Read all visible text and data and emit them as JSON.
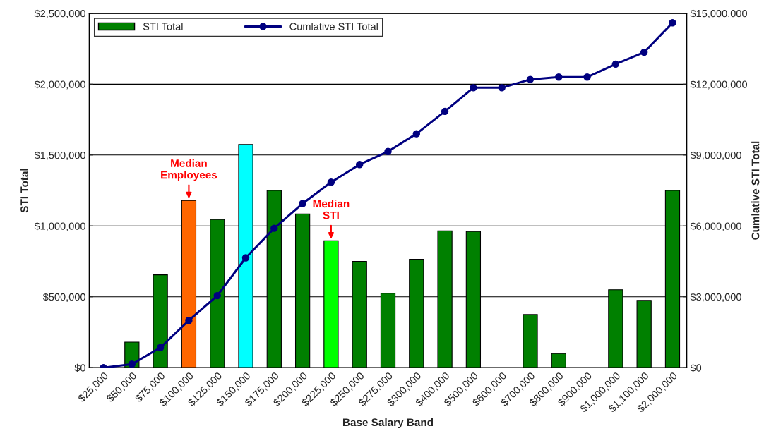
{
  "chart_data": {
    "type": "bar",
    "xlabel": "Base Salary Band",
    "ylabel": "STI Total",
    "y2label": "Cumlative STI Total",
    "categories": [
      "$25,000",
      "$50,000",
      "$75,000",
      "$100,000",
      "$125,000",
      "$150,000",
      "$175,000",
      "$200,000",
      "$225,000",
      "$250,000",
      "$275,000",
      "$300,000",
      "$400,000",
      "$500,000",
      "$600,000",
      "$700,000",
      "$800,000",
      "$900,000",
      "$1,000,000",
      "$1,100,000",
      "$2,000,000"
    ],
    "series": [
      {
        "name": "STI Total",
        "color": "#008000",
        "colors": [
          "#008000",
          "#008000",
          "#008000",
          "#ff6600",
          "#008000",
          "#00ffff",
          "#008000",
          "#008000",
          "#00ff00",
          "#008000",
          "#008000",
          "#008000",
          "#008000",
          "#008000",
          "#008000",
          "#008000",
          "#008000",
          "#008000",
          "#008000",
          "#008000",
          "#008000"
        ],
        "values": [
          null,
          180000,
          655000,
          1180000,
          1045000,
          1575000,
          1250000,
          1085000,
          895000,
          750000,
          525000,
          765000,
          965000,
          960000,
          null,
          375000,
          100000,
          null,
          550000,
          475000,
          1250000
        ]
      },
      {
        "name": "Cumlative STI Total",
        "type": "line",
        "axis": "y2",
        "color": "#000080",
        "values": [
          0,
          150000,
          850000,
          2000000,
          3050000,
          4650000,
          5900000,
          6950000,
          7850000,
          8600000,
          9150000,
          9900000,
          10850000,
          11850000,
          11850000,
          12200000,
          12300000,
          12300000,
          12850000,
          13350000,
          14600000
        ]
      }
    ],
    "ylim": [
      0,
      2500000
    ],
    "yticks": [
      {
        "value": 0,
        "label": "$0"
      },
      {
        "value": 500000,
        "label": "$500,000"
      },
      {
        "value": 1000000,
        "label": "$1,000,000"
      },
      {
        "value": 1500000,
        "label": "$1,500,000"
      },
      {
        "value": 2000000,
        "label": "$2,000,000"
      },
      {
        "value": 2500000,
        "label": "$2,500,000"
      }
    ],
    "y2lim": [
      0,
      15000000
    ],
    "y2ticks": [
      {
        "value": 0,
        "label": "$0"
      },
      {
        "value": 3000000,
        "label": "$3,000,000"
      },
      {
        "value": 6000000,
        "label": "$6,000,000"
      },
      {
        "value": 9000000,
        "label": "$9,000,000"
      },
      {
        "value": 12000000,
        "label": "$12,000,000"
      },
      {
        "value": 15000000,
        "label": "$15,000,000"
      }
    ],
    "annotations": [
      {
        "text": "Median\nEmployees",
        "x": "$100,000",
        "y": 1180000
      },
      {
        "text": "Median\nSTI",
        "x": "$225,000",
        "y": 895000
      }
    ],
    "grid": "y",
    "legend": "top left",
    "marker": "circle",
    "line_style": "solid"
  }
}
